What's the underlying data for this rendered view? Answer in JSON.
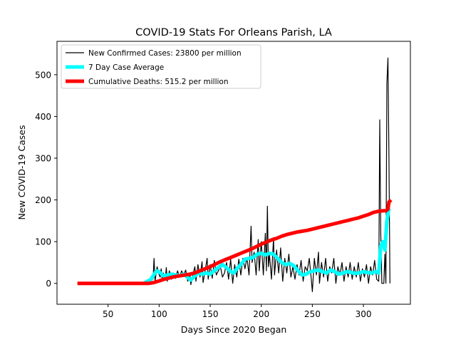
{
  "chart_data": {
    "type": "line",
    "title": "COVID-19 Stats For Orleans Parish, LA",
    "xlabel": "Days Since 2020 Began",
    "ylabel": "New COVID-19 Cases",
    "xlim": [
      0,
      346
    ],
    "ylim": [
      -50,
      580
    ],
    "xticks": [
      50,
      100,
      150,
      200,
      250,
      300
    ],
    "yticks": [
      0,
      100,
      200,
      300,
      400,
      500
    ],
    "grid": false,
    "legend_position": "upper-left",
    "series": [
      {
        "name": "New Confirmed Cases: 23800 per million",
        "color": "#000000",
        "points": [
          [
            20,
            0
          ],
          [
            30,
            0
          ],
          [
            40,
            0
          ],
          [
            50,
            0
          ],
          [
            60,
            0
          ],
          [
            70,
            0
          ],
          [
            80,
            0
          ],
          [
            84,
            0
          ],
          [
            86,
            2
          ],
          [
            88,
            6
          ],
          [
            90,
            4
          ],
          [
            92,
            15
          ],
          [
            94,
            10
          ],
          [
            95,
            60
          ],
          [
            96,
            5
          ],
          [
            98,
            40
          ],
          [
            100,
            20
          ],
          [
            101,
            15
          ],
          [
            102,
            35
          ],
          [
            103,
            8
          ],
          [
            104,
            25
          ],
          [
            106,
            10
          ],
          [
            107,
            38
          ],
          [
            108,
            5
          ],
          [
            110,
            30
          ],
          [
            112,
            10
          ],
          [
            114,
            25
          ],
          [
            116,
            12
          ],
          [
            118,
            30
          ],
          [
            120,
            15
          ],
          [
            122,
            30
          ],
          [
            124,
            20
          ],
          [
            126,
            32
          ],
          [
            128,
            5
          ],
          [
            130,
            25
          ],
          [
            131,
            -3
          ],
          [
            133,
            20
          ],
          [
            135,
            40
          ],
          [
            136,
            5
          ],
          [
            138,
            45
          ],
          [
            140,
            15
          ],
          [
            142,
            52
          ],
          [
            143,
            2
          ],
          [
            145,
            30
          ],
          [
            147,
            60
          ],
          [
            148,
            10
          ],
          [
            150,
            45
          ],
          [
            152,
            12
          ],
          [
            154,
            55
          ],
          [
            156,
            20
          ],
          [
            158,
            30
          ],
          [
            160,
            40
          ],
          [
            162,
            15
          ],
          [
            164,
            25
          ],
          [
            166,
            50
          ],
          [
            168,
            10
          ],
          [
            170,
            58
          ],
          [
            172,
            0
          ],
          [
            174,
            45
          ],
          [
            176,
            15
          ],
          [
            178,
            58
          ],
          [
            180,
            20
          ],
          [
            182,
            60
          ],
          [
            184,
            35
          ],
          [
            186,
            62
          ],
          [
            188,
            20
          ],
          [
            190,
            137
          ],
          [
            191,
            50
          ],
          [
            193,
            75
          ],
          [
            195,
            20
          ],
          [
            197,
            105
          ],
          [
            198,
            30
          ],
          [
            200,
            100
          ],
          [
            202,
            20
          ],
          [
            204,
            120
          ],
          [
            205,
            30
          ],
          [
            206,
            185
          ],
          [
            207,
            40
          ],
          [
            208,
            70
          ],
          [
            210,
            10
          ],
          [
            212,
            110
          ],
          [
            213,
            20
          ],
          [
            215,
            80
          ],
          [
            217,
            25
          ],
          [
            219,
            85
          ],
          [
            221,
            5
          ],
          [
            223,
            60
          ],
          [
            225,
            25
          ],
          [
            227,
            70
          ],
          [
            229,
            15
          ],
          [
            231,
            40
          ],
          [
            233,
            10
          ],
          [
            235,
            45
          ],
          [
            237,
            20
          ],
          [
            239,
            55
          ],
          [
            241,
            5
          ],
          [
            243,
            40
          ],
          [
            245,
            30
          ],
          [
            247,
            60
          ],
          [
            249,
            10
          ],
          [
            250,
            -20
          ],
          [
            252,
            60
          ],
          [
            254,
            20
          ],
          [
            256,
            75
          ],
          [
            257,
            0
          ],
          [
            259,
            50
          ],
          [
            261,
            15
          ],
          [
            263,
            60
          ],
          [
            265,
            5
          ],
          [
            267,
            40
          ],
          [
            269,
            25
          ],
          [
            271,
            60
          ],
          [
            273,
            0
          ],
          [
            275,
            40
          ],
          [
            277,
            20
          ],
          [
            279,
            50
          ],
          [
            281,
            5
          ],
          [
            283,
            40
          ],
          [
            285,
            15
          ],
          [
            287,
            50
          ],
          [
            289,
            10
          ],
          [
            291,
            40
          ],
          [
            293,
            15
          ],
          [
            295,
            50
          ],
          [
            297,
            5
          ],
          [
            299,
            35
          ],
          [
            301,
            15
          ],
          [
            303,
            45
          ],
          [
            305,
            0
          ],
          [
            307,
            40
          ],
          [
            309,
            20
          ],
          [
            311,
            55
          ],
          [
            313,
            10
          ],
          [
            315,
            5
          ],
          [
            316,
            392
          ],
          [
            317,
            120
          ],
          [
            318,
            0
          ],
          [
            320,
            0
          ],
          [
            321,
            70
          ],
          [
            322,
            0
          ],
          [
            323,
            480
          ],
          [
            324,
            540
          ],
          [
            325,
            300
          ],
          [
            326,
            0
          ]
        ]
      },
      {
        "name": "7 Day Case Average",
        "color": "#00ffff",
        "points": [
          [
            85,
            0
          ],
          [
            92,
            10
          ],
          [
            96,
            25
          ],
          [
            98,
            30
          ],
          [
            100,
            28
          ],
          [
            104,
            18
          ],
          [
            108,
            20
          ],
          [
            112,
            22
          ],
          [
            116,
            20
          ],
          [
            120,
            18
          ],
          [
            124,
            22
          ],
          [
            128,
            14
          ],
          [
            131,
            8
          ],
          [
            134,
            15
          ],
          [
            138,
            25
          ],
          [
            142,
            22
          ],
          [
            146,
            25
          ],
          [
            150,
            22
          ],
          [
            154,
            30
          ],
          [
            158,
            38
          ],
          [
            162,
            45
          ],
          [
            166,
            38
          ],
          [
            170,
            28
          ],
          [
            173,
            25
          ],
          [
            176,
            35
          ],
          [
            180,
            45
          ],
          [
            184,
            58
          ],
          [
            188,
            60
          ],
          [
            192,
            62
          ],
          [
            196,
            70
          ],
          [
            200,
            72
          ],
          [
            204,
            68
          ],
          [
            208,
            72
          ],
          [
            212,
            70
          ],
          [
            216,
            60
          ],
          [
            220,
            50
          ],
          [
            224,
            45
          ],
          [
            228,
            48
          ],
          [
            232,
            42
          ],
          [
            236,
            30
          ],
          [
            240,
            20
          ],
          [
            244,
            22
          ],
          [
            248,
            28
          ],
          [
            252,
            30
          ],
          [
            256,
            32
          ],
          [
            260,
            28
          ],
          [
            264,
            25
          ],
          [
            268,
            32
          ],
          [
            272,
            28
          ],
          [
            276,
            22
          ],
          [
            280,
            25
          ],
          [
            284,
            28
          ],
          [
            288,
            26
          ],
          [
            292,
            24
          ],
          [
            296,
            25
          ],
          [
            300,
            28
          ],
          [
            304,
            26
          ],
          [
            308,
            25
          ],
          [
            312,
            28
          ],
          [
            315,
            25
          ],
          [
            317,
            90
          ],
          [
            319,
            100
          ],
          [
            321,
            80
          ],
          [
            323,
            150
          ],
          [
            325,
            180
          ]
        ]
      },
      {
        "name": "Cumulative Deaths: 515.2 per million",
        "color": "#ff0000",
        "points": [
          [
            20,
            0
          ],
          [
            90,
            0
          ],
          [
            95,
            2
          ],
          [
            100,
            6
          ],
          [
            105,
            10
          ],
          [
            110,
            13
          ],
          [
            115,
            16
          ],
          [
            120,
            18
          ],
          [
            125,
            20
          ],
          [
            130,
            22
          ],
          [
            135,
            25
          ],
          [
            140,
            30
          ],
          [
            145,
            35
          ],
          [
            150,
            40
          ],
          [
            155,
            46
          ],
          [
            160,
            52
          ],
          [
            165,
            57
          ],
          [
            170,
            62
          ],
          [
            175,
            67
          ],
          [
            180,
            72
          ],
          [
            185,
            77
          ],
          [
            190,
            82
          ],
          [
            195,
            88
          ],
          [
            200,
            94
          ],
          [
            205,
            99
          ],
          [
            210,
            104
          ],
          [
            215,
            108
          ],
          [
            220,
            113
          ],
          [
            225,
            117
          ],
          [
            230,
            120
          ],
          [
            235,
            123
          ],
          [
            240,
            125
          ],
          [
            245,
            127
          ],
          [
            250,
            130
          ],
          [
            255,
            133
          ],
          [
            260,
            136
          ],
          [
            265,
            139
          ],
          [
            270,
            142
          ],
          [
            275,
            145
          ],
          [
            280,
            148
          ],
          [
            285,
            151
          ],
          [
            290,
            154
          ],
          [
            295,
            157
          ],
          [
            300,
            161
          ],
          [
            305,
            165
          ],
          [
            310,
            170
          ],
          [
            315,
            173
          ],
          [
            320,
            174
          ],
          [
            322,
            174
          ],
          [
            324,
            178
          ],
          [
            325,
            195
          ],
          [
            327,
            200
          ]
        ]
      }
    ]
  }
}
